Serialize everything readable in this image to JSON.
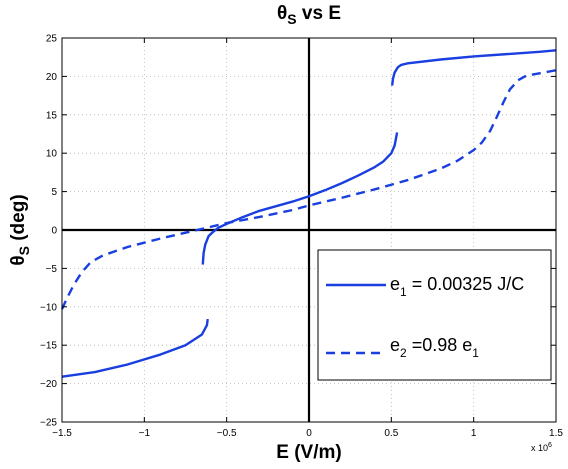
{
  "chart_data": {
    "type": "line",
    "title": {
      "symbol": "θ",
      "sub": "S",
      "rest": " vs E"
    },
    "xlabel": "E (V/m)",
    "ylabel": {
      "symbol": "θ",
      "sub": "S",
      "rest": " (deg)"
    },
    "x_multiplier": {
      "base": "x 10",
      "exp": "6"
    },
    "xlim": [
      -1.5,
      1.5
    ],
    "ylim": [
      -25,
      25
    ],
    "x_ticks": [
      -1.5,
      -1,
      -0.5,
      0,
      0.5,
      1,
      1.5
    ],
    "x_tick_labels": [
      "−1.5",
      "−1",
      "−0.5",
      "0",
      "0.5",
      "1",
      "1.5"
    ],
    "y_ticks": [
      -25,
      -20,
      -15,
      -10,
      -5,
      0,
      5,
      10,
      15,
      20,
      25
    ],
    "y_tick_labels": [
      "−25",
      "−20",
      "−15",
      "−10",
      "−5",
      "0",
      "5",
      "10",
      "15",
      "20",
      "25"
    ],
    "grid": true,
    "legend_position": "lower-right",
    "series": [
      {
        "name": {
          "pre": "e",
          "sub": "1",
          "post": " = 0.00325 J/C"
        },
        "color": "#1a3fe0",
        "style": "solid",
        "segments": [
          {
            "x": [
              -1.5,
              -1.3,
              -1.1,
              -0.9,
              -0.75,
              -0.65,
              -0.62,
              -0.615
            ],
            "y": [
              -19.1,
              -18.5,
              -17.5,
              -16.2,
              -15.0,
              -13.6,
              -12.4,
              -11.6
            ]
          },
          {
            "x": [
              -0.645,
              -0.64,
              -0.63,
              -0.61,
              -0.58,
              -0.55,
              -0.5,
              -0.4,
              -0.3,
              -0.2,
              -0.1,
              0.0,
              0.1,
              0.2,
              0.3,
              0.4,
              0.45,
              0.5,
              0.52,
              0.535
            ],
            "y": [
              -4.5,
              -3.0,
              -1.9,
              -0.8,
              -0.2,
              0.3,
              0.8,
              1.7,
              2.5,
              3.1,
              3.7,
              4.4,
              5.2,
              6.1,
              7.1,
              8.2,
              8.9,
              10.0,
              11.0,
              12.7
            ]
          },
          {
            "x": [
              0.505,
              0.51,
              0.52,
              0.54,
              0.56,
              0.6,
              0.8,
              1.0,
              1.2,
              1.4,
              1.5
            ],
            "y": [
              18.8,
              19.7,
              20.5,
              21.2,
              21.5,
              21.7,
              22.2,
              22.6,
              22.9,
              23.2,
              23.4
            ]
          }
        ]
      },
      {
        "name": {
          "pre": "e",
          "sub": "2",
          "post": " =0.98 e",
          "sub2": "1"
        },
        "color": "#1a3fe0",
        "style": "dashed",
        "segments": [
          {
            "x": [
              -1.5,
              -1.47,
              -1.43,
              -1.38,
              -1.33,
              -1.31,
              -1.25,
              -1.1,
              -0.9,
              -0.7,
              -0.5,
              -0.3,
              -0.1,
              0.0,
              0.2,
              0.4,
              0.6,
              0.8,
              0.9,
              1.0,
              1.05,
              1.1,
              1.14,
              1.18,
              1.22,
              1.27,
              1.32,
              1.4,
              1.5
            ],
            "y": [
              -10.3,
              -8.9,
              -7.2,
              -5.5,
              -4.3,
              -4.0,
              -3.3,
              -2.2,
              -1.1,
              -0.1,
              0.9,
              1.7,
              2.6,
              3.2,
              4.2,
              5.3,
              6.5,
              8.0,
              9.0,
              10.4,
              11.4,
              12.9,
              14.7,
              16.6,
              18.3,
              19.5,
              20.1,
              20.4,
              20.8
            ]
          }
        ]
      }
    ]
  }
}
